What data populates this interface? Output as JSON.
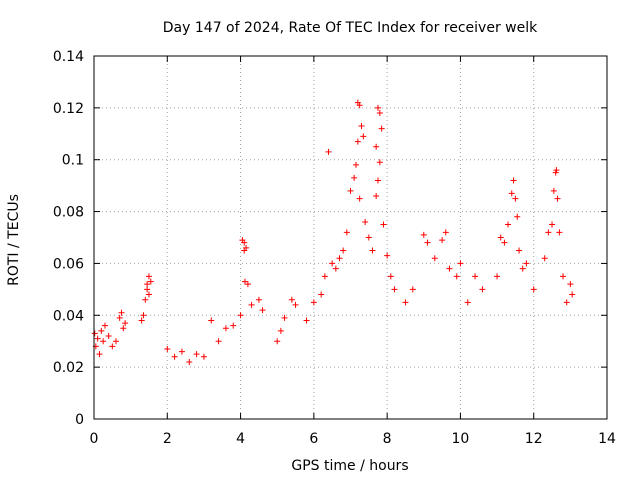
{
  "chart_data": {
    "type": "scatter",
    "title": "Day 147 of 2024, Rate Of TEC Index for receiver welk",
    "xlabel": "GPS time / hours",
    "ylabel": "ROTI / TECUs",
    "xlim": [
      0,
      14
    ],
    "ylim": [
      0,
      0.14
    ],
    "xticks": [
      0,
      2,
      4,
      6,
      8,
      10,
      12,
      14
    ],
    "yticks": [
      0,
      0.02,
      0.04,
      0.06,
      0.08,
      0.1,
      0.12,
      0.14
    ],
    "xtick_labels": [
      "0",
      "2",
      "4",
      "6",
      "8",
      "10",
      "12",
      "14"
    ],
    "ytick_labels": [
      "0",
      "0.02",
      "0.04",
      "0.06",
      "0.08",
      "0.1",
      "0.12",
      "0.14"
    ],
    "grid": true,
    "marker": "+",
    "color": "#ff0000",
    "series": [
      {
        "name": "ROTI",
        "points": [
          [
            0.02,
            0.033
          ],
          [
            0.05,
            0.028
          ],
          [
            0.1,
            0.031
          ],
          [
            0.15,
            0.025
          ],
          [
            0.2,
            0.034
          ],
          [
            0.25,
            0.03
          ],
          [
            0.3,
            0.036
          ],
          [
            0.4,
            0.032
          ],
          [
            0.5,
            0.028
          ],
          [
            0.6,
            0.03
          ],
          [
            0.7,
            0.039
          ],
          [
            0.75,
            0.041
          ],
          [
            0.8,
            0.035
          ],
          [
            0.85,
            0.037
          ],
          [
            1.3,
            0.038
          ],
          [
            1.35,
            0.04
          ],
          [
            1.4,
            0.046
          ],
          [
            1.45,
            0.05
          ],
          [
            1.5,
            0.055
          ],
          [
            1.55,
            0.053
          ],
          [
            1.45,
            0.052
          ],
          [
            1.5,
            0.048
          ],
          [
            2.0,
            0.027
          ],
          [
            2.2,
            0.024
          ],
          [
            2.4,
            0.026
          ],
          [
            2.6,
            0.022
          ],
          [
            2.8,
            0.025
          ],
          [
            3.0,
            0.024
          ],
          [
            3.2,
            0.038
          ],
          [
            3.4,
            0.03
          ],
          [
            3.6,
            0.035
          ],
          [
            3.8,
            0.036
          ],
          [
            4.05,
            0.069
          ],
          [
            4.1,
            0.068
          ],
          [
            4.15,
            0.066
          ],
          [
            4.1,
            0.065
          ],
          [
            4.12,
            0.053
          ],
          [
            4.2,
            0.052
          ],
          [
            4.0,
            0.04
          ],
          [
            4.3,
            0.044
          ],
          [
            4.5,
            0.046
          ],
          [
            4.6,
            0.042
          ],
          [
            5.0,
            0.03
          ],
          [
            5.1,
            0.034
          ],
          [
            5.2,
            0.039
          ],
          [
            5.4,
            0.046
          ],
          [
            5.5,
            0.044
          ],
          [
            5.8,
            0.038
          ],
          [
            6.0,
            0.045
          ],
          [
            6.2,
            0.048
          ],
          [
            6.3,
            0.055
          ],
          [
            6.4,
            0.103
          ],
          [
            6.5,
            0.06
          ],
          [
            6.6,
            0.058
          ],
          [
            6.7,
            0.062
          ],
          [
            6.8,
            0.065
          ],
          [
            6.9,
            0.072
          ],
          [
            7.0,
            0.088
          ],
          [
            7.1,
            0.093
          ],
          [
            7.15,
            0.098
          ],
          [
            7.2,
            0.122
          ],
          [
            7.25,
            0.121
          ],
          [
            7.3,
            0.113
          ],
          [
            7.35,
            0.109
          ],
          [
            7.2,
            0.107
          ],
          [
            7.25,
            0.085
          ],
          [
            7.4,
            0.076
          ],
          [
            7.5,
            0.07
          ],
          [
            7.6,
            0.065
          ],
          [
            7.7,
            0.105
          ],
          [
            7.75,
            0.12
          ],
          [
            7.8,
            0.118
          ],
          [
            7.85,
            0.112
          ],
          [
            7.8,
            0.099
          ],
          [
            7.75,
            0.092
          ],
          [
            7.7,
            0.086
          ],
          [
            7.9,
            0.075
          ],
          [
            8.0,
            0.063
          ],
          [
            8.1,
            0.055
          ],
          [
            8.2,
            0.05
          ],
          [
            8.5,
            0.045
          ],
          [
            8.7,
            0.05
          ],
          [
            9.0,
            0.071
          ],
          [
            9.1,
            0.068
          ],
          [
            9.3,
            0.062
          ],
          [
            9.5,
            0.069
          ],
          [
            9.6,
            0.072
          ],
          [
            9.7,
            0.058
          ],
          [
            9.9,
            0.055
          ],
          [
            10.0,
            0.06
          ],
          [
            10.2,
            0.045
          ],
          [
            10.4,
            0.055
          ],
          [
            10.6,
            0.05
          ],
          [
            11.0,
            0.055
          ],
          [
            11.1,
            0.07
          ],
          [
            11.2,
            0.068
          ],
          [
            11.3,
            0.075
          ],
          [
            11.4,
            0.087
          ],
          [
            11.45,
            0.092
          ],
          [
            11.5,
            0.085
          ],
          [
            11.55,
            0.078
          ],
          [
            11.6,
            0.065
          ],
          [
            11.7,
            0.058
          ],
          [
            11.8,
            0.06
          ],
          [
            12.0,
            0.05
          ],
          [
            12.3,
            0.062
          ],
          [
            12.4,
            0.072
          ],
          [
            12.5,
            0.075
          ],
          [
            12.55,
            0.088
          ],
          [
            12.6,
            0.095
          ],
          [
            12.62,
            0.096
          ],
          [
            12.65,
            0.085
          ],
          [
            12.7,
            0.072
          ],
          [
            12.8,
            0.055
          ],
          [
            12.9,
            0.045
          ],
          [
            13.0,
            0.052
          ],
          [
            13.05,
            0.048
          ]
        ]
      }
    ]
  }
}
